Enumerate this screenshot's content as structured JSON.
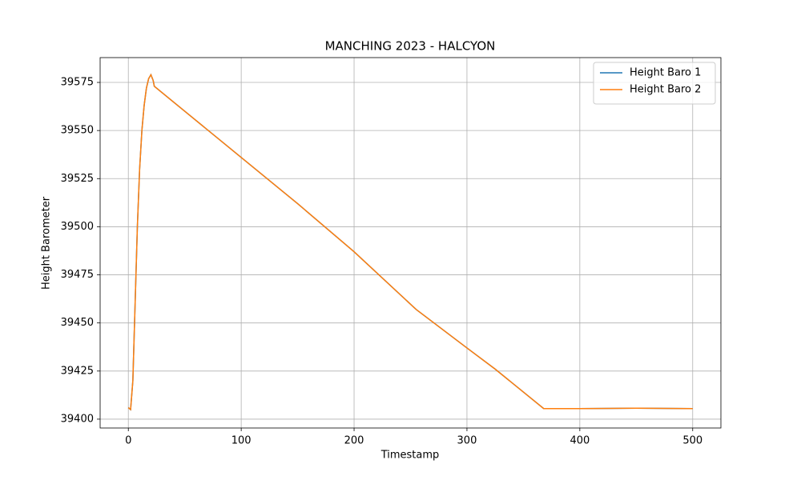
{
  "chart_data": {
    "type": "line",
    "title": "MANCHING 2023 - HALCYON",
    "x_label": "Timestamp",
    "y_label": "Height Barometer",
    "xlim": [
      -25,
      525
    ],
    "ylim": [
      39395.4,
      39587.9
    ],
    "xticks": [
      0,
      100,
      200,
      300,
      400,
      500
    ],
    "yticks": [
      39400,
      39425,
      39450,
      39475,
      39500,
      39525,
      39550,
      39575
    ],
    "grid": true,
    "legend": "upper-right",
    "series": [
      {
        "name": "Height Baro 1",
        "color": "#1f77b4",
        "x": [
          0,
          2,
          4,
          6,
          8,
          10,
          12,
          14,
          16,
          18,
          20,
          22,
          23,
          50,
          100,
          150,
          200,
          255,
          300,
          325,
          368,
          400,
          450,
          500
        ],
        "values": [
          39406,
          39405,
          39420,
          39460,
          39500,
          39530,
          39550,
          39563,
          39572,
          39577,
          39579,
          39576,
          39573,
          39560,
          39536,
          39512,
          39487,
          39457,
          39437,
          39426,
          39405.5,
          39405.5,
          39405.7,
          39405.5
        ]
      },
      {
        "name": "Height Baro 2",
        "color": "#ff7f0e",
        "x": [
          0,
          2,
          4,
          6,
          8,
          10,
          12,
          14,
          16,
          18,
          20,
          22,
          23,
          50,
          100,
          150,
          200,
          255,
          300,
          325,
          368,
          400,
          450,
          500
        ],
        "values": [
          39406,
          39405,
          39420,
          39460,
          39500,
          39530,
          39550,
          39563,
          39572,
          39577,
          39579,
          39576,
          39573,
          39560,
          39536,
          39512,
          39487,
          39457,
          39437,
          39426,
          39405.5,
          39405.5,
          39405.7,
          39405.5
        ]
      }
    ]
  }
}
